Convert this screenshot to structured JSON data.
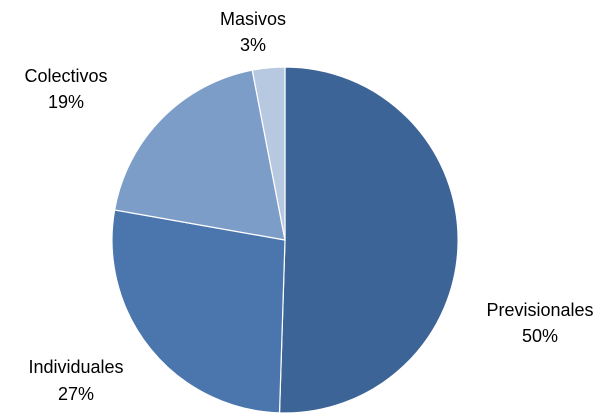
{
  "chart_data": {
    "type": "pie",
    "title": "",
    "slices": [
      {
        "label": "Previsionales",
        "value": 50,
        "display": "50%",
        "color": "#3d6496"
      },
      {
        "label": "Individuales",
        "value": 27,
        "display": "27%",
        "color": "#4a76ad"
      },
      {
        "label": "Colectivos",
        "value": 19,
        "display": "19%",
        "color": "#7d9dc9"
      },
      {
        "label": "Masivos",
        "value": 3,
        "display": "3%",
        "color": "#b7c8e1"
      }
    ],
    "start_angle_deg": 0,
    "direction": "clockwise",
    "legend": "none",
    "data_labels": "outside"
  }
}
